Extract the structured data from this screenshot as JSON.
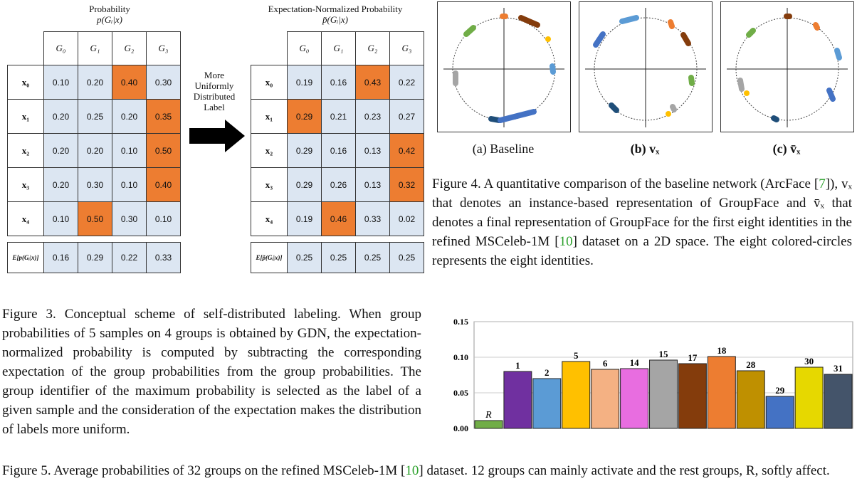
{
  "table_left": {
    "title_line1": "Probability",
    "title_line2": "p(Gᵢ|x)",
    "headers": [
      "G₀",
      "G₁",
      "G₂",
      "G₃"
    ],
    "rows": [
      {
        "label": "x₀",
        "values": [
          "0.10",
          "0.20",
          "0.40",
          "0.30"
        ],
        "highlight": 2
      },
      {
        "label": "x₁",
        "values": [
          "0.20",
          "0.25",
          "0.20",
          "0.35"
        ],
        "highlight": 3
      },
      {
        "label": "x₂",
        "values": [
          "0.20",
          "0.20",
          "0.10",
          "0.50"
        ],
        "highlight": 3
      },
      {
        "label": "x₃",
        "values": [
          "0.20",
          "0.30",
          "0.10",
          "0.40"
        ],
        "highlight": 3
      },
      {
        "label": "x₄",
        "values": [
          "0.10",
          "0.50",
          "0.30",
          "0.10"
        ],
        "highlight": 1
      }
    ],
    "expectation": {
      "label": "E[p(Gᵢ|x)]",
      "values": [
        "0.16",
        "0.29",
        "0.22",
        "0.33"
      ]
    }
  },
  "table_right": {
    "title_line1": "Expectation-Normalized Probability",
    "title_line2": "p̃(Gᵢ|x)",
    "headers": [
      "G₀",
      "G₁",
      "G₂",
      "G₃"
    ],
    "rows": [
      {
        "label": "x₀",
        "values": [
          "0.19",
          "0.16",
          "0.43",
          "0.22"
        ],
        "highlight": 2
      },
      {
        "label": "x₁",
        "values": [
          "0.29",
          "0.21",
          "0.23",
          "0.27"
        ],
        "highlight": 0
      },
      {
        "label": "x₂",
        "values": [
          "0.29",
          "0.16",
          "0.13",
          "0.42"
        ],
        "highlight": 3
      },
      {
        "label": "x₃",
        "values": [
          "0.29",
          "0.26",
          "0.13",
          "0.32"
        ],
        "highlight": 3
      },
      {
        "label": "x₄",
        "values": [
          "0.19",
          "0.46",
          "0.33",
          "0.02"
        ],
        "highlight": 1
      }
    ],
    "expectation": {
      "label": "E[p̃(Gᵢ|x)]",
      "values": [
        "0.25",
        "0.25",
        "0.25",
        "0.25"
      ]
    }
  },
  "arrow_label": [
    "More",
    "Uniformly",
    "Distributed",
    "Label"
  ],
  "figure3_caption": "Figure 3. Conceptual scheme of self-distributed labeling. When group probabilities of 5 samples on 4 groups is obtained by GDN, the expectation-normalized probability is computed by subtracting the corresponding expectation of the group probabilities from the group probabilities. The group identifier of the maximum probability is selected as the label of a given sample and the consideration of the expectation makes the distribution of labels more uniform.",
  "figure4": {
    "panels": [
      {
        "label": "(a) Baseline"
      },
      {
        "label": "(b) vₓ"
      },
      {
        "label": "(c) v̄ₓ"
      }
    ],
    "caption_parts": {
      "prefix": "Figure 4. A quantitative comparison of the baseline network (ArcFace [",
      "cite1": "7",
      "mid": "]), vₓ that denotes an instance-based representation of GroupFace and v̄ₓ that denotes a final representation of GroupFace for the first eight identities in the refined MSCeleb-1M [",
      "cite2": "10",
      "suffix": "] dataset on a 2D space. The eight colored-circles represents the eight identities."
    }
  },
  "chart_data": {
    "type": "bar",
    "categories": [
      "R",
      "1",
      "2",
      "5",
      "6",
      "14",
      "15",
      "17",
      "18",
      "28",
      "29",
      "30",
      "31"
    ],
    "values": [
      0.011,
      0.08,
      0.07,
      0.094,
      0.083,
      0.084,
      0.096,
      0.091,
      0.101,
      0.081,
      0.045,
      0.086,
      0.076
    ],
    "colors": [
      "#70ad47",
      "#7030a0",
      "#5b9bd5",
      "#ffc000",
      "#f4b183",
      "#e86de0",
      "#a5a5a5",
      "#843c0c",
      "#ed7d31",
      "#bf9000",
      "#4472c4",
      "#e6d800",
      "#44546a"
    ],
    "yticks": [
      "0.00",
      "0.05",
      "0.10",
      "0.15"
    ],
    "ylim": [
      0,
      0.15
    ]
  },
  "figure5_caption_parts": {
    "prefix": "Figure 5. Average probabilities of 32 groups on the refined MSCeleb-1M [",
    "cite": "10",
    "suffix": "] dataset. 12 groups can mainly activate and the rest groups, R, softly affect."
  }
}
